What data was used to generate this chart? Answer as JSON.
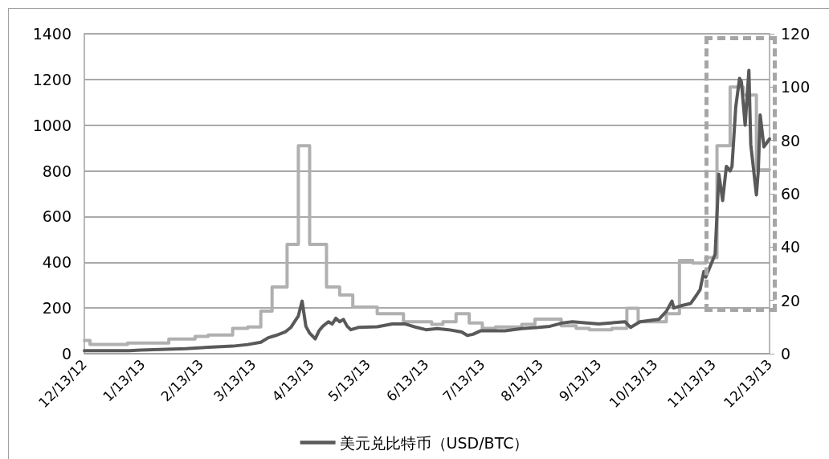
{
  "chart_data": {
    "type": "line",
    "xlim": [
      "2012-12-13",
      "2013-12-13"
    ],
    "xticks": [
      {
        "value": "2012-12-13",
        "label": "12/13/12"
      },
      {
        "value": "2013-01-13",
        "label": "1/13/13"
      },
      {
        "value": "2013-02-13",
        "label": "2/13/13"
      },
      {
        "value": "2013-03-13",
        "label": "3/13/13"
      },
      {
        "value": "2013-04-13",
        "label": "4/13/13"
      },
      {
        "value": "2013-05-13",
        "label": "5/13/13"
      },
      {
        "value": "2013-06-13",
        "label": "6/13/13"
      },
      {
        "value": "2013-07-13",
        "label": "7/13/13"
      },
      {
        "value": "2013-08-13",
        "label": "8/13/13"
      },
      {
        "value": "2013-09-13",
        "label": "9/13/13"
      },
      {
        "value": "2013-10-13",
        "label": "10/13/13"
      },
      {
        "value": "2013-11-13",
        "label": "11/13/13"
      },
      {
        "value": "2013-12-13",
        "label": "12/13/13"
      }
    ],
    "ylim": [
      0,
      1400
    ],
    "yticks": [
      0,
      200,
      400,
      600,
      800,
      1000,
      1200,
      1400
    ],
    "y2lim": [
      0,
      120
    ],
    "y2ticks": [
      0,
      20,
      40,
      60,
      80,
      100,
      120
    ],
    "grid": "y",
    "legend": "bottom",
    "marker": "none",
    "line_style": "solid",
    "series": [
      {
        "name": "美元兑比特币（USD/BTC）",
        "color": "#595959",
        "x": [
          "2012-12-13",
          "2013-01-06",
          "2013-01-12",
          "2013-02-05",
          "2013-02-17",
          "2013-03-02",
          "2013-03-10",
          "2013-03-17",
          "2013-03-21",
          "2013-03-25",
          "2013-03-30",
          "2013-04-02",
          "2013-04-04",
          "2013-04-06",
          "2013-04-08",
          "2013-04-10",
          "2013-04-12",
          "2013-04-15",
          "2013-04-17",
          "2013-04-19",
          "2013-04-22",
          "2013-04-24",
          "2013-04-26",
          "2013-04-28",
          "2013-04-30",
          "2013-05-02",
          "2013-05-04",
          "2013-05-08",
          "2013-05-18",
          "2013-05-26",
          "2013-06-02",
          "2013-06-08",
          "2013-06-13",
          "2013-06-19",
          "2013-06-25",
          "2013-07-02",
          "2013-07-05",
          "2013-07-08",
          "2013-07-12",
          "2013-07-25",
          "2013-08-03",
          "2013-08-12",
          "2013-08-18",
          "2013-08-25",
          "2013-08-30",
          "2013-09-13",
          "2013-09-27",
          "2013-09-30",
          "2013-10-05",
          "2013-10-15",
          "2013-10-19",
          "2013-10-22",
          "2013-10-23",
          "2013-10-27",
          "2013-11-01",
          "2013-11-04",
          "2013-11-06",
          "2013-11-08",
          "2013-11-09",
          "2013-11-12",
          "2013-11-14",
          "2013-11-16",
          "2013-11-18",
          "2013-11-20",
          "2013-11-22",
          "2013-11-23",
          "2013-11-25",
          "2013-11-27",
          "2013-11-28",
          "2013-11-30",
          "2013-12-02",
          "2013-12-03",
          "2013-12-06",
          "2013-12-07",
          "2013-12-08",
          "2013-12-10",
          "2013-12-13"
        ],
        "values": [
          13,
          13,
          16,
          22,
          28,
          33,
          40,
          50,
          70,
          80,
          95,
          115,
          140,
          165,
          230,
          120,
          90,
          65,
          100,
          120,
          140,
          130,
          155,
          140,
          150,
          120,
          105,
          115,
          118,
          130,
          130,
          115,
          105,
          110,
          105,
          95,
          80,
          85,
          100,
          100,
          110,
          115,
          120,
          135,
          140,
          130,
          140,
          115,
          140,
          150,
          185,
          230,
          200,
          210,
          220,
          255,
          280,
          360,
          335,
          395,
          435,
          785,
          670,
          820,
          800,
          820,
          1080,
          1205,
          1190,
          1000,
          1240,
          915,
          695,
          800,
          1045,
          905,
          940
        ]
      },
      {
        "type": "step",
        "axis": "y2",
        "color": "#b0b0b0",
        "x": [
          "2012-12-13",
          "2012-12-16",
          "2013-01-05",
          "2013-01-27",
          "2013-02-10",
          "2013-02-17",
          "2013-03-02",
          "2013-03-10",
          "2013-03-17",
          "2013-03-23",
          "2013-03-31",
          "2013-04-06",
          "2013-04-12",
          "2013-04-21",
          "2013-04-28",
          "2013-05-05",
          "2013-05-18",
          "2013-06-01",
          "2013-06-16",
          "2013-06-22",
          "2013-06-29",
          "2013-07-06",
          "2013-07-13",
          "2013-07-20",
          "2013-08-03",
          "2013-08-10",
          "2013-08-24",
          "2013-09-01",
          "2013-09-08",
          "2013-09-20",
          "2013-09-28",
          "2013-10-04",
          "2013-10-19",
          "2013-10-26",
          "2013-11-02",
          "2013-11-09",
          "2013-11-15",
          "2013-11-22",
          "2013-11-29",
          "2013-12-06",
          "2013-12-13"
        ],
        "values": [
          5,
          3.5,
          4,
          5.5,
          6.5,
          7,
          9.5,
          10,
          16,
          25,
          41,
          78,
          41,
          25,
          22,
          17.5,
          15,
          12,
          11,
          12,
          15,
          11.5,
          9.5,
          10,
          11,
          13,
          10.5,
          9.5,
          9,
          9.5,
          17,
          12,
          15,
          35,
          34,
          36,
          78,
          100,
          97,
          69,
          69
        ]
      }
    ]
  }
}
